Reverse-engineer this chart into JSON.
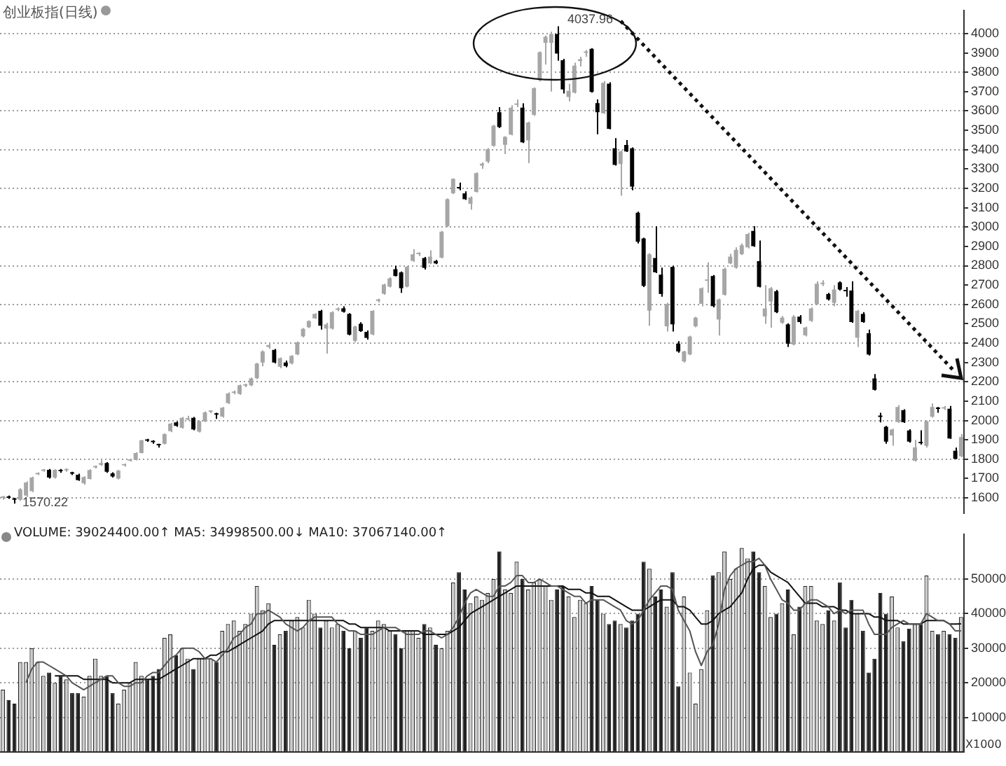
{
  "chart_data": [
    {
      "type": "candlestick",
      "title": "创业板指(日线)",
      "colors": [
        "#a6a6a6",
        "#000000",
        "#000000",
        "#a6a6a6",
        "#a6a6a6",
        "#a6a6a6",
        "#a6a6a6",
        "#a6a6a6",
        "#000000",
        "#a6a6a6",
        "#000000",
        "#a6a6a6",
        "#000000",
        "#000000",
        "#a6a6a6",
        "#a6a6a6",
        "#a6a6a6",
        "#a6a6a6",
        "#000000",
        "#000000",
        "#a6a6a6",
        "#a6a6a6",
        "#a6a6a6",
        "#a6a6a6",
        "#a6a6a6",
        "#000000",
        "#000000",
        "#000000",
        "#a6a6a6",
        "#a6a6a6",
        "#000000",
        "#a6a6a6",
        "#a6a6a6",
        "#000000",
        "#a6a6a6",
        "#a6a6a6",
        "#a6a6a6",
        "#000000",
        "#a6a6a6",
        "#a6a6a6",
        "#a6a6a6",
        "#a6a6a6",
        "#a6a6a6",
        "#a6a6a6",
        "#a6a6a6",
        "#a6a6a6",
        "#a6a6a6",
        "#000000",
        "#a6a6a6",
        "#000000",
        "#a6a6a6",
        "#a6a6a6",
        "#a6a6a6",
        "#a6a6a6",
        "#a6a6a6",
        "#000000",
        "#a6a6a6",
        "#a6a6a6",
        "#a6a6a6",
        "#000000",
        "#000000",
        "#a6a6a6",
        "#000000",
        "#000000",
        "#a6a6a6",
        "#a6a6a6",
        "#a6a6a6",
        "#a6a6a6",
        "#000000",
        "#000000",
        "#a6a6a6",
        "#a6a6a6",
        "#a6a6a6",
        "#000000",
        "#a6a6a6",
        "#000000",
        "#a6a6a6",
        "#a6a6a6",
        "#a6a6a6",
        "#000000",
        "#000000",
        "#a6a6a6",
        "#a6a6a6",
        "#a6a6a6",
        "#a6a6a6",
        "#a6a6a6",
        "#000000",
        "#a6a6a6",
        "#a6a6a6",
        "#a6a6a6",
        "#000000",
        "#a6a6a6",
        "#a6a6a6",
        "#a6a6a6",
        "#a6a6a6",
        "#a6a6a6",
        "#000000",
        "#000000",
        "#a6a6a6",
        "#a6a6a6",
        "#a6a6a6",
        "#a6a6a6",
        "#000000",
        "#000000",
        "#a6a6a6",
        "#000000",
        "#000000",
        "#a6a6a6",
        "#000000",
        "#000000",
        "#000000",
        "#000000",
        "#a6a6a6",
        "#000000",
        "#000000",
        "#a6a6a6",
        "#000000",
        "#000000",
        "#a6a6a6",
        "#a6a6a6",
        "#a6a6a6",
        "#a6a6a6",
        "#a6a6a6",
        "#000000",
        "#a6a6a6",
        "#a6a6a6",
        "#a6a6a6",
        "#a6a6a6",
        "#a6a6a6",
        "#a6a6a6",
        "#000000",
        "#000000",
        "#a6a6a6",
        "#a6a6a6",
        "#000000",
        "#a6a6a6",
        "#000000",
        "#a6a6a6",
        "#000000",
        "#a6a6a6",
        "#a6a6a6",
        "#a6a6a6",
        "#a6a6a6",
        "#000000",
        "#a6a6a6",
        "#000000",
        "#000000",
        "#000000",
        "#a6a6a6",
        "#000000",
        "#000000",
        "#000000",
        "#000000",
        "#000000",
        "#a6a6a6",
        "#a6a6a6",
        "#000000",
        "#000000",
        "#a6a6a6",
        "#000000",
        "#a6a6a6",
        "#a6a6a6",
        "#000000",
        "#a6a6a6",
        "#000000",
        "#000000",
        "#a6a6a6"
      ],
      "ylim": [
        1520,
        4120
      ],
      "yticks": [
        1600,
        1700,
        1800,
        1900,
        2000,
        2100,
        2200,
        2300,
        2400,
        2500,
        2600,
        2700,
        2800,
        2900,
        3000,
        3100,
        3200,
        3300,
        3400,
        3500,
        3600,
        3700,
        3800,
        3900,
        4000
      ],
      "grid": "y",
      "tick_labels": "y",
      "annotations": [
        "4037.96",
        "1570.22"
      ],
      "categories": [
        null,
        null,
        null,
        null,
        null,
        null,
        null,
        null,
        null,
        null,
        null,
        null,
        null,
        null,
        null,
        null,
        null,
        null,
        null,
        null,
        null,
        null,
        null,
        null,
        null,
        null,
        null,
        null,
        null,
        null,
        null,
        null,
        null,
        null,
        null,
        null,
        null,
        null,
        null,
        null,
        null,
        null,
        null,
        null,
        null,
        null,
        null,
        null,
        null,
        null,
        null,
        null,
        null,
        null,
        null,
        null,
        null,
        null,
        null,
        null,
        null,
        null,
        null,
        null,
        null,
        null,
        null,
        null,
        null,
        null,
        null,
        null,
        null,
        null,
        null,
        null,
        null,
        null,
        null,
        null,
        null,
        null,
        null,
        null,
        null,
        null,
        null,
        null,
        null,
        null,
        null,
        null,
        null,
        null,
        null,
        null,
        null,
        null,
        null,
        null,
        null,
        null,
        null,
        null,
        null,
        null,
        null,
        null,
        null,
        null,
        null,
        null,
        null,
        null,
        null,
        null,
        null,
        null,
        null,
        null,
        null,
        null,
        null,
        null,
        null,
        null,
        null,
        null,
        null,
        null,
        null,
        null,
        null,
        null,
        null,
        null,
        null,
        null,
        null,
        null,
        null,
        null,
        null,
        null,
        null,
        null,
        null,
        null,
        null,
        null,
        null,
        null,
        null,
        null,
        null,
        null,
        null,
        null,
        null,
        null,
        null,
        null,
        null,
        null,
        null,
        null,
        null
      ],
      "ohlc": [
        [
          1600,
          1610,
          1590,
          1605
        ],
        [
          1605,
          1612,
          1595,
          1600
        ],
        [
          1595,
          1600,
          1570.22,
          1590
        ],
        [
          1590,
          1650,
          1585,
          1645
        ],
        [
          1612,
          1685,
          1605,
          1680
        ],
        [
          1635,
          1710,
          1630,
          1705
        ],
        [
          1722,
          1732,
          1718,
          1728
        ],
        [
          1740,
          1750,
          1735,
          1745
        ],
        [
          1745,
          1750,
          1700,
          1705
        ],
        [
          1705,
          1748,
          1700,
          1745
        ],
        [
          1740,
          1750,
          1730,
          1738
        ],
        [
          1742,
          1752,
          1735,
          1745
        ],
        [
          1728,
          1735,
          1718,
          1725
        ],
        [
          1720,
          1725,
          1688,
          1692
        ],
        [
          1675,
          1712,
          1668,
          1708
        ],
        [
          1698,
          1748,
          1695,
          1744
        ],
        [
          1758,
          1768,
          1752,
          1762
        ],
        [
          1770,
          1795,
          1765,
          1780
        ],
        [
          1780,
          1785,
          1730,
          1735
        ],
        [
          1727,
          1732,
          1705,
          1711
        ],
        [
          1700,
          1745,
          1695,
          1741
        ],
        [
          1768,
          1778,
          1762,
          1774
        ],
        [
          1792,
          1802,
          1788,
          1797
        ],
        [
          1797,
          1836,
          1794,
          1832
        ],
        [
          1832,
          1900,
          1830,
          1898
        ],
        [
          1900,
          1905,
          1890,
          1895
        ],
        [
          1893,
          1898,
          1880,
          1888
        ],
        [
          1875,
          1880,
          1860,
          1872
        ],
        [
          1880,
          1933,
          1876,
          1930
        ],
        [
          1945,
          1988,
          1940,
          1984
        ],
        [
          1990,
          1995,
          1968,
          1972
        ],
        [
          1962,
          2018,
          1958,
          2014
        ],
        [
          2005,
          2025,
          2000,
          2008
        ],
        [
          2014,
          2018,
          1950,
          1954
        ],
        [
          1942,
          2000,
          1938,
          1996
        ],
        [
          1996,
          2046,
          1992,
          2042
        ],
        [
          2045,
          2052,
          2038,
          2048
        ],
        [
          2032,
          2040,
          2008,
          2030
        ],
        [
          2020,
          2070,
          2015,
          2066
        ],
        [
          2090,
          2145,
          2085,
          2140
        ],
        [
          2142,
          2155,
          2135,
          2148
        ],
        [
          2138,
          2186,
          2132,
          2182
        ],
        [
          2180,
          2190,
          2172,
          2182
        ],
        [
          2182,
          2222,
          2178,
          2217
        ],
        [
          2218,
          2298,
          2214,
          2294
        ],
        [
          2300,
          2362,
          2280,
          2357
        ],
        [
          2380,
          2400,
          2370,
          2390
        ],
        [
          2365,
          2370,
          2295,
          2300
        ],
        [
          2278,
          2326,
          2270,
          2322
        ],
        [
          2300,
          2310,
          2275,
          2282
        ],
        [
          2295,
          2338,
          2290,
          2334
        ],
        [
          2342,
          2408,
          2338,
          2404
        ],
        [
          2435,
          2478,
          2430,
          2474
        ],
        [
          2482,
          2518,
          2478,
          2514
        ],
        [
          2528,
          2555,
          2525,
          2551
        ],
        [
          2567,
          2572,
          2470,
          2490
        ],
        [
          2475,
          2505,
          2346,
          2497
        ],
        [
          2475,
          2565,
          2470,
          2560
        ],
        [
          2572,
          2585,
          2565,
          2578
        ],
        [
          2580,
          2590,
          2558,
          2562
        ],
        [
          2551,
          2555,
          2440,
          2444
        ],
        [
          2412,
          2490,
          2405,
          2486
        ],
        [
          2500,
          2508,
          2458,
          2462
        ],
        [
          2458,
          2465,
          2418,
          2427
        ],
        [
          2445,
          2570,
          2440,
          2567
        ],
        [
          2618,
          2630,
          2610,
          2626
        ],
        [
          2655,
          2707,
          2650,
          2703
        ],
        [
          2692,
          2740,
          2688,
          2735
        ],
        [
          2782,
          2800,
          2745,
          2747
        ],
        [
          2766,
          2770,
          2660,
          2684
        ],
        [
          2692,
          2798,
          2688,
          2794
        ],
        [
          2825,
          2885,
          2820,
          2859
        ],
        [
          2860,
          2870,
          2850,
          2866
        ],
        [
          2840,
          2845,
          2780,
          2789
        ],
        [
          2812,
          2880,
          2808,
          2847
        ],
        [
          2825,
          2830,
          2808,
          2812
        ],
        [
          2842,
          2980,
          2838,
          2976
        ],
        [
          3005,
          3148,
          3000,
          3144
        ],
        [
          3175,
          3252,
          3170,
          3249
        ],
        [
          3205,
          3230,
          3190,
          3200
        ],
        [
          3174,
          3185,
          3140,
          3144
        ],
        [
          3120,
          3158,
          3090,
          3153
        ],
        [
          3182,
          3282,
          3178,
          3279
        ],
        [
          3318,
          3335,
          3300,
          3328
        ],
        [
          3338,
          3408,
          3330,
          3403
        ],
        [
          3420,
          3528,
          3415,
          3524
        ],
        [
          3594,
          3620,
          3512,
          3517
        ],
        [
          3425,
          3470,
          3377,
          3466
        ],
        [
          3478,
          3630,
          3474,
          3617
        ],
        [
          3632,
          3660,
          3620,
          3636
        ],
        [
          3617,
          3640,
          3434,
          3438
        ],
        [
          3448,
          3545,
          3330,
          3540
        ],
        [
          3580,
          3722,
          3575,
          3718
        ],
        [
          3758,
          3908,
          3752,
          3904
        ],
        [
          3952,
          3990,
          3840,
          3984
        ],
        [
          3952,
          4010,
          3700,
          3998
        ],
        [
          3998,
          4037.96,
          3860,
          3897
        ],
        [
          3862,
          3870,
          3690,
          3711
        ],
        [
          3672,
          3740,
          3650,
          3704
        ],
        [
          3695,
          3850,
          3690,
          3834
        ],
        [
          3858,
          3880,
          3830,
          3868
        ],
        [
          3900,
          3915,
          3880,
          3905
        ],
        [
          3921,
          3925,
          3695,
          3699
        ],
        [
          3641,
          3660,
          3480,
          3594
        ],
        [
          3588,
          3755,
          3585,
          3746
        ],
        [
          3741,
          3748,
          3505,
          3508
        ],
        [
          3407,
          3460,
          3318,
          3321
        ],
        [
          3326,
          3395,
          3162,
          3391
        ],
        [
          3424,
          3450,
          3388,
          3391
        ],
        [
          3407,
          3412,
          3190,
          3209
        ],
        [
          3074,
          3080,
          2915,
          2924
        ],
        [
          2941,
          2945,
          2690,
          2696
        ],
        [
          2568,
          2865,
          2490,
          2859
        ],
        [
          2840,
          3004,
          2762,
          2766
        ],
        [
          2754,
          2790,
          2640,
          2654
        ],
        [
          2487,
          2608,
          2460,
          2602
        ],
        [
          2794,
          2800,
          2460,
          2497
        ],
        [
          2397,
          2410,
          2350,
          2357
        ],
        [
          2305,
          2360,
          2300,
          2357
        ],
        [
          2342,
          2438,
          2338,
          2434
        ],
        [
          2487,
          2536,
          2482,
          2532
        ],
        [
          2603,
          2688,
          2590,
          2684
        ],
        [
          2722,
          2817,
          2660,
          2726
        ],
        [
          2747,
          2752,
          2585,
          2591
        ],
        [
          2522,
          2630,
          2439,
          2626
        ],
        [
          2650,
          2790,
          2645,
          2784
        ],
        [
          2812,
          2862,
          2808,
          2847
        ],
        [
          2790,
          2895,
          2785,
          2882
        ],
        [
          2860,
          2915,
          2855,
          2906
        ],
        [
          2895,
          2970,
          2890,
          2964
        ],
        [
          2980,
          3005,
          2898,
          2901
        ],
        [
          2824,
          2930,
          2688,
          2691
        ],
        [
          2538,
          2700,
          2500,
          2579
        ],
        [
          2615,
          2690,
          2480,
          2684
        ],
        [
          2668,
          2675,
          2555,
          2560
        ],
        [
          2505,
          2540,
          2500,
          2532
        ],
        [
          2497,
          2502,
          2380,
          2397
        ],
        [
          2393,
          2545,
          2388,
          2537
        ],
        [
          2537,
          2545,
          2500,
          2509
        ],
        [
          2440,
          2485,
          2435,
          2481
        ],
        [
          2515,
          2585,
          2510,
          2579
        ],
        [
          2603,
          2720,
          2598,
          2707
        ],
        [
          2705,
          2725,
          2695,
          2708
        ],
        [
          2654,
          2660,
          2620,
          2626
        ],
        [
          2608,
          2700,
          2590,
          2677
        ],
        [
          2714,
          2720,
          2672,
          2677
        ],
        [
          2670,
          2690,
          2640,
          2668
        ],
        [
          2672,
          2720,
          2505,
          2509
        ],
        [
          2428,
          2572,
          2380,
          2567
        ],
        [
          2551,
          2560,
          2505,
          2509
        ],
        [
          2451,
          2470,
          2336,
          2341
        ],
        [
          2217,
          2240,
          2155,
          2159
        ],
        [
          2022,
          2040,
          1990,
          2018
        ],
        [
          1968,
          1972,
          1880,
          1891
        ],
        [
          1922,
          1958,
          1870,
          1954
        ],
        [
          1992,
          2080,
          1988,
          2070
        ],
        [
          2054,
          2058,
          1988,
          1991
        ],
        [
          1949,
          1955,
          1885,
          1891
        ],
        [
          1792,
          1900,
          1788,
          1861
        ],
        [
          1885,
          1950,
          1875,
          1883
        ],
        [
          1869,
          2000,
          1860,
          1996
        ],
        [
          2020,
          2088,
          2015,
          2070
        ],
        [
          2062,
          2070,
          2040,
          2060
        ],
        [
          2062,
          2075,
          2055,
          2066
        ],
        [
          2061,
          2075,
          1905,
          1907
        ],
        [
          1844,
          1860,
          1800,
          1802
        ],
        [
          1815,
          1930,
          1810,
          1914
        ]
      ]
    },
    {
      "type": "bar",
      "ylabel": "X1000",
      "ylim": [
        0,
        63000
      ],
      "yticks": [
        10000,
        20000,
        30000,
        40000,
        50000
      ],
      "grid": "y",
      "tick_labels": "y",
      "marker": "none",
      "annotations": [
        "VOLUME: 39024400.00↑ MA5: 34998500.00↓ MA10: 37067140.00↑"
      ],
      "categories": [
        null,
        null,
        null,
        null,
        null,
        null,
        null,
        null,
        null,
        null,
        null,
        null,
        null,
        null,
        null,
        null,
        null,
        null,
        null,
        null,
        null,
        null,
        null,
        null,
        null,
        null,
        null,
        null,
        null,
        null,
        null,
        null,
        null,
        null,
        null,
        null,
        null,
        null,
        null,
        null,
        null,
        null,
        null,
        null,
        null,
        null,
        null,
        null,
        null,
        null,
        null,
        null,
        null,
        null,
        null,
        null,
        null,
        null,
        null,
        null,
        null,
        null,
        null,
        null,
        null,
        null,
        null,
        null,
        null,
        null,
        null,
        null,
        null,
        null,
        null,
        null,
        null,
        null,
        null,
        null,
        null,
        null,
        null,
        null,
        null,
        null,
        null,
        null,
        null,
        null,
        null,
        null,
        null,
        null,
        null,
        null,
        null,
        null,
        null,
        null,
        null,
        null,
        null,
        null,
        null,
        null,
        null,
        null,
        null,
        null,
        null,
        null,
        null,
        null,
        null,
        null,
        null,
        null,
        null,
        null,
        null,
        null,
        null,
        null,
        null,
        null,
        null,
        null,
        null,
        null,
        null,
        null,
        null,
        null,
        null,
        null,
        null,
        null,
        null,
        null,
        null,
        null,
        null,
        null,
        null,
        null,
        null,
        null,
        null,
        null,
        null,
        null,
        null,
        null,
        null,
        null,
        null,
        null,
        null,
        null,
        null,
        null,
        null,
        null,
        null,
        null,
        null
      ],
      "series": [
        {
          "type": "bar",
          "values": [
            18000,
            15000,
            14000,
            26000,
            26000,
            30000,
            26000,
            22000,
            23000,
            20000,
            22000,
            21000,
            17000,
            17000,
            16000,
            22000,
            27000,
            22000,
            22000,
            17000,
            14000,
            18000,
            20000,
            26000,
            22000,
            21000,
            22000,
            24000,
            33000,
            34000,
            28000,
            30000,
            27000,
            24000,
            27000,
            27000,
            27000,
            26000,
            35000,
            37000,
            38000,
            35000,
            37000,
            40000,
            48000,
            41000,
            43000,
            31000,
            34000,
            35000,
            38000,
            39000,
            36000,
            44000,
            40000,
            36000,
            38000,
            36000,
            37000,
            35000,
            30000,
            35000,
            33000,
            36000,
            35000,
            38000,
            37000,
            35000,
            34000,
            30000,
            35000,
            35000,
            33000,
            37000,
            36000,
            31000,
            30000,
            35000,
            49000,
            52000,
            47000,
            43000,
            45000,
            44000,
            46000,
            50000,
            58000,
            47000,
            46000,
            55000,
            50000,
            47000,
            49000,
            50000,
            48000,
            44000,
            47000,
            48000,
            45000,
            39000,
            44000,
            43000,
            48000,
            44000,
            40000,
            37000,
            38000,
            37000,
            36000,
            38000,
            40000,
            55000,
            53000,
            45000,
            47000,
            42000,
            52000,
            19000,
            45000,
            23000,
            14000,
            24000,
            41000,
            51000,
            52000,
            58000,
            50000,
            53000,
            59000,
            56000,
            58000,
            52000,
            48000,
            39000,
            40000,
            43000,
            47000,
            34000,
            42000,
            48000,
            48000,
            38000,
            37000,
            41000,
            38000,
            49000,
            36000,
            44000,
            40000,
            35000,
            23000,
            27000,
            46000,
            40000,
            45000,
            36000,
            32000,
            35700,
            37000,
            37000,
            51000,
            35000,
            34000,
            35000,
            34000,
            33000,
            39024.4
          ],
          "colors": [
            "#cccccc",
            "#222222",
            "#222222",
            "#cccccc",
            "#cccccc",
            "#cccccc",
            "#cccccc",
            "#cccccc",
            "#222222",
            "#cccccc",
            "#222222",
            "#cccccc",
            "#222222",
            "#222222",
            "#cccccc",
            "#cccccc",
            "#cccccc",
            "#cccccc",
            "#222222",
            "#222222",
            "#cccccc",
            "#cccccc",
            "#cccccc",
            "#cccccc",
            "#cccccc",
            "#222222",
            "#222222",
            "#222222",
            "#cccccc",
            "#cccccc",
            "#222222",
            "#cccccc",
            "#cccccc",
            "#222222",
            "#cccccc",
            "#cccccc",
            "#cccccc",
            "#222222",
            "#cccccc",
            "#cccccc",
            "#cccccc",
            "#cccccc",
            "#cccccc",
            "#cccccc",
            "#cccccc",
            "#cccccc",
            "#cccccc",
            "#222222",
            "#cccccc",
            "#222222",
            "#cccccc",
            "#cccccc",
            "#cccccc",
            "#cccccc",
            "#cccccc",
            "#222222",
            "#cccccc",
            "#cccccc",
            "#cccccc",
            "#222222",
            "#222222",
            "#cccccc",
            "#222222",
            "#222222",
            "#cccccc",
            "#cccccc",
            "#cccccc",
            "#cccccc",
            "#222222",
            "#222222",
            "#cccccc",
            "#cccccc",
            "#cccccc",
            "#222222",
            "#cccccc",
            "#222222",
            "#cccccc",
            "#cccccc",
            "#cccccc",
            "#222222",
            "#222222",
            "#cccccc",
            "#cccccc",
            "#cccccc",
            "#cccccc",
            "#cccccc",
            "#222222",
            "#cccccc",
            "#cccccc",
            "#cccccc",
            "#222222",
            "#cccccc",
            "#cccccc",
            "#cccccc",
            "#cccccc",
            "#cccccc",
            "#222222",
            "#222222",
            "#cccccc",
            "#cccccc",
            "#cccccc",
            "#cccccc",
            "#222222",
            "#222222",
            "#cccccc",
            "#222222",
            "#222222",
            "#cccccc",
            "#222222",
            "#222222",
            "#222222",
            "#222222",
            "#cccccc",
            "#222222",
            "#222222",
            "#cccccc",
            "#222222",
            "#222222",
            "#cccccc",
            "#cccccc",
            "#cccccc",
            "#cccccc",
            "#cccccc",
            "#222222",
            "#cccccc",
            "#cccccc",
            "#cccccc",
            "#cccccc",
            "#cccccc",
            "#cccccc",
            "#222222",
            "#222222",
            "#cccccc",
            "#cccccc",
            "#222222",
            "#cccccc",
            "#222222",
            "#cccccc",
            "#222222",
            "#cccccc",
            "#cccccc",
            "#cccccc",
            "#cccccc",
            "#222222",
            "#cccccc",
            "#222222",
            "#222222",
            "#222222",
            "#cccccc",
            "#222222",
            "#222222",
            "#222222",
            "#222222",
            "#222222",
            "#cccccc",
            "#cccccc",
            "#222222",
            "#222222",
            "#cccccc",
            "#222222",
            "#cccccc",
            "#cccccc",
            "#222222",
            "#cccccc",
            "#222222",
            "#222222",
            "#cccccc"
          ]
        },
        {
          "type": "line",
          "color": "#555555",
          "values": [
            null,
            null,
            null,
            null,
            20000,
            24000,
            26000,
            26000,
            25000,
            24000,
            23000,
            22000,
            20000,
            19000,
            18000,
            19000,
            20000,
            21000,
            22000,
            22000,
            20000,
            19000,
            19000,
            20000,
            20000,
            22000,
            23000,
            23000,
            25000,
            27000,
            28000,
            30000,
            30000,
            30000,
            29000,
            27000,
            27000,
            26000,
            28000,
            30000,
            33000,
            34000,
            36000,
            37000,
            40000,
            40000,
            41000,
            40000,
            39000,
            37000,
            36000,
            35000,
            36000,
            38000,
            39000,
            39000,
            39000,
            39000,
            37000,
            36000,
            35000,
            35000,
            34000,
            34000,
            34000,
            35000,
            36000,
            36000,
            36000,
            35000,
            34000,
            34000,
            34000,
            35000,
            35000,
            34000,
            33000,
            34000,
            36000,
            39000,
            43000,
            46000,
            47000,
            46000,
            45000,
            45000,
            48000,
            48000,
            49000,
            51000,
            51000,
            49000,
            49000,
            50000,
            49000,
            48000,
            48000,
            47000,
            46000,
            45000,
            45000,
            43000,
            44000,
            44000,
            44000,
            43000,
            42000,
            41000,
            38000,
            37000,
            38000,
            41000,
            44000,
            46000,
            48000,
            48000,
            47000,
            41000,
            38000,
            35000,
            29000,
            25000,
            29000,
            31000,
            37000,
            47000,
            51000,
            53000,
            54000,
            55000,
            55000,
            56000,
            54000,
            50000,
            47000,
            44000,
            43000,
            41000,
            41000,
            43000,
            44000,
            44000,
            43000,
            42000,
            40000,
            41000,
            40000,
            41000,
            41000,
            41000,
            37000,
            34000,
            34000,
            34000,
            36000,
            37000,
            38000,
            37000,
            37000,
            37000,
            40000,
            39000,
            38000,
            38000,
            37000,
            35000,
            34998.5
          ]
        },
        {
          "type": "line",
          "color": "#111111",
          "values": [
            null,
            null,
            null,
            null,
            null,
            null,
            null,
            null,
            null,
            22000,
            22000,
            22000,
            22000,
            22000,
            21000,
            21000,
            21000,
            21000,
            21000,
            20000,
            20000,
            20000,
            20000,
            21000,
            21000,
            21000,
            21000,
            21000,
            22000,
            23000,
            24000,
            25000,
            26000,
            27000,
            27000,
            27000,
            28000,
            28000,
            29000,
            29000,
            30000,
            31000,
            32000,
            33000,
            34000,
            35000,
            37000,
            38000,
            38000,
            38000,
            38000,
            38000,
            38000,
            38000,
            38000,
            38000,
            38000,
            38000,
            38000,
            38000,
            37000,
            37000,
            36000,
            36000,
            36000,
            36000,
            36000,
            35000,
            35000,
            35000,
            35000,
            35000,
            35000,
            34000,
            34000,
            34000,
            34000,
            34000,
            35000,
            36000,
            38000,
            40000,
            41000,
            42000,
            43000,
            44000,
            45000,
            46000,
            47000,
            48000,
            48000,
            48000,
            48000,
            48000,
            48000,
            48000,
            48000,
            48000,
            47000,
            47000,
            47000,
            46000,
            46000,
            45000,
            45000,
            45000,
            44000,
            43000,
            42000,
            41000,
            41000,
            41000,
            42000,
            43000,
            44000,
            44000,
            44000,
            42000,
            42000,
            41000,
            39000,
            37000,
            37000,
            38000,
            40000,
            41000,
            42000,
            44000,
            46000,
            50000,
            53000,
            54000,
            54000,
            52000,
            51000,
            50000,
            49000,
            47000,
            45000,
            43000,
            43000,
            43000,
            42000,
            42000,
            42000,
            41000,
            41000,
            40000,
            40000,
            40000,
            40000,
            39000,
            39000,
            38000,
            38000,
            38000,
            37000,
            37000,
            37000,
            37000,
            38000,
            38000,
            38000,
            38000,
            37000,
            37000,
            37067.14
          ]
        }
      ]
    }
  ]
}
